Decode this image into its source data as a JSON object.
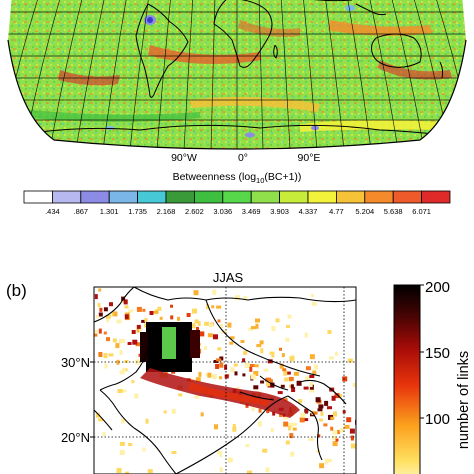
{
  "panel_a": {
    "lon_labels": [
      "90°W",
      "0°",
      "90°E"
    ],
    "colorbar": {
      "title_pre": "Betweenness (log",
      "title_sub": "10",
      "title_post": "(BC+1))",
      "ticks": [
        ".434",
        ".867",
        "1.301",
        "1.735",
        "2.168",
        "2.602",
        "3.036",
        "3.469",
        "3.903",
        "4.337",
        "4.77",
        "5.204",
        "5.638",
        "6.071"
      ],
      "colors": [
        "#ffffff",
        "#b8b8f0",
        "#8c8ce6",
        "#7ab6e8",
        "#46c8d6",
        "#3a9a3a",
        "#3fbf3f",
        "#56d84a",
        "#8fe04a",
        "#c8ec3a",
        "#f2f23a",
        "#f6c238",
        "#f58a2a",
        "#ee5a2a",
        "#e02a2a"
      ]
    }
  },
  "panel_b": {
    "panel_label": "(b)",
    "title": "JJAS",
    "lat_labels": [
      "30°N",
      "20°N"
    ],
    "colorbar": {
      "label": "number of links",
      "ticks": [
        "200",
        "150",
        "100"
      ]
    }
  }
}
